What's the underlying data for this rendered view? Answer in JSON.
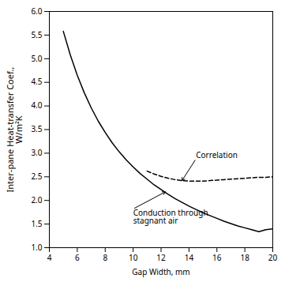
{
  "chart_data": {
    "type": "line",
    "title": "",
    "xlabel": "Gap Width, mm",
    "ylabel": "Inter-pane Heat-transfer Coef.,\nW/m²K",
    "xlim": [
      4,
      20
    ],
    "ylim": [
      1.0,
      6.0
    ],
    "xticks": [
      4,
      6,
      8,
      10,
      12,
      14,
      16,
      18,
      20
    ],
    "yticks": [
      {
        "value": 1,
        "label": "1.0"
      },
      1.5,
      {
        "value": 2,
        "label": "2.0"
      },
      2.5,
      {
        "value": 3,
        "label": "3.0"
      },
      3.5,
      {
        "value": 4,
        "label": "4.0"
      },
      4.5,
      {
        "value": 5,
        "label": "5.0"
      },
      5.5,
      {
        "value": 6,
        "label": "6.0"
      }
    ],
    "grid": false,
    "series": [
      {
        "color": "#000000",
        "line_style": "solid",
        "x": [
          5.0,
          5.5,
          6.0,
          6.5,
          7.0,
          7.5,
          8.0,
          8.5,
          9.0,
          9.5,
          10.0,
          10.5,
          11.0,
          11.5,
          12.0,
          12.5,
          13.0,
          13.5,
          14.0,
          14.5,
          15.0,
          15.5,
          16.0,
          16.5,
          17.0,
          17.5,
          18.0,
          18.5,
          19.0,
          19.5,
          20.0
        ],
        "values": [
          5.58,
          5.08,
          4.65,
          4.28,
          3.96,
          3.68,
          3.44,
          3.22,
          3.03,
          2.86,
          2.71,
          2.57,
          2.45,
          2.33,
          2.23,
          2.13,
          2.04,
          1.96,
          1.88,
          1.81,
          1.74,
          1.68,
          1.62,
          1.56,
          1.51,
          1.46,
          1.42,
          1.38,
          1.34,
          1.38,
          1.4
        ]
      },
      {
        "color": "#000000",
        "line_style": "dashed",
        "x": [
          11.0,
          11.5,
          12.0,
          12.5,
          13.0,
          13.5,
          14.0,
          14.5,
          15.0,
          15.5,
          16.0,
          16.5,
          17.0,
          17.5,
          18.0,
          18.5,
          19.0,
          19.5,
          20.0
        ],
        "values": [
          2.62,
          2.56,
          2.51,
          2.47,
          2.44,
          2.42,
          2.41,
          2.41,
          2.41,
          2.42,
          2.43,
          2.44,
          2.45,
          2.46,
          2.47,
          2.48,
          2.49,
          2.49,
          2.5
        ]
      }
    ],
    "annotations": [
      {
        "text": "Correlation",
        "xy": [
          13.5,
          2.42
        ],
        "xytext": [
          14.5,
          2.88
        ]
      },
      {
        "text": "Conduction through\nstagnant air",
        "xy": [
          12.3,
          2.18
        ],
        "xytext": [
          10.0,
          1.82
        ]
      }
    ]
  }
}
